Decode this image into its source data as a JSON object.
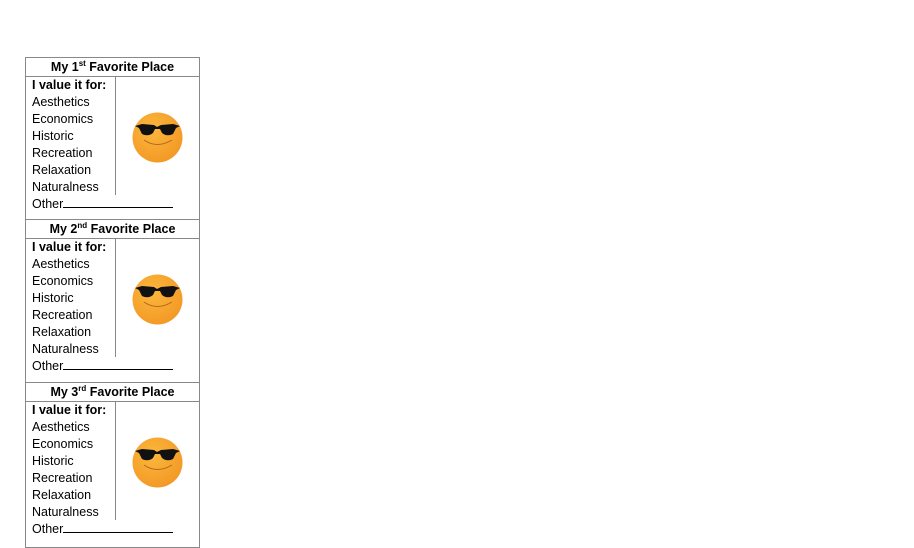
{
  "cards": [
    {
      "prefix": "My 1",
      "sup": "st",
      "suffix": " Favorite Place"
    },
    {
      "prefix": "My 2",
      "sup": "nd",
      "suffix": " Favorite Place"
    },
    {
      "prefix": "My 3",
      "sup": "rd",
      "suffix": " Favorite Place"
    }
  ],
  "heading": "I value it for:",
  "values": [
    "Aesthetics",
    "Economics",
    "Historic",
    "Recreation",
    "Relaxation",
    "Naturalness"
  ],
  "other": "Other",
  "colors": {
    "face": "#f7a12a",
    "border": "#888888"
  },
  "icon": "sunglasses-smiley-icon"
}
